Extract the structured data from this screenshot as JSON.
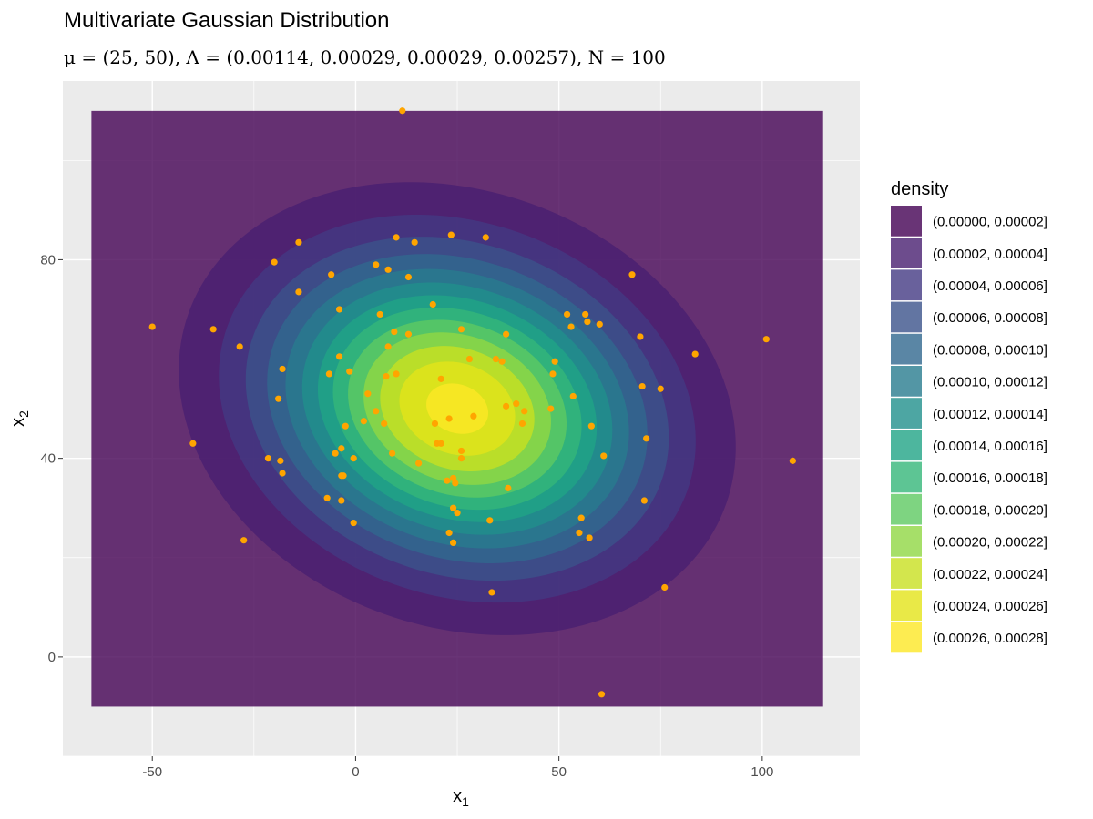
{
  "chart_data": {
    "type": "contour",
    "title": "Multivariate Gaussian Distribution",
    "subtitle": "μ = (25, 50), Λ = (0.00114, 0.00029, 0.00029, 0.00257), N = 100",
    "xlabel": "x",
    "xlabel_sub": "1",
    "ylabel": "x",
    "ylabel_sub": "2",
    "xlim": [
      -72,
      124
    ],
    "ylim": [
      -20,
      116
    ],
    "x_ticks": [
      -50,
      0,
      50,
      100
    ],
    "y_ticks": [
      0,
      40,
      80
    ],
    "grid": true,
    "mean": [
      25,
      50
    ],
    "precision": [
      0.00114,
      0.00029,
      0.00029,
      0.00257
    ],
    "n": 100,
    "fill_region": {
      "x": [
        -65,
        115
      ],
      "y": [
        -10,
        110
      ]
    },
    "legend": {
      "title": "density",
      "position": "right",
      "entries": [
        {
          "label": "(0.00000, 0.00002]",
          "color": "#440154"
        },
        {
          "label": "(0.00002, 0.00004]",
          "color": "#481F70"
        },
        {
          "label": "(0.00004, 0.00006]",
          "color": "#443983"
        },
        {
          "label": "(0.00006, 0.00008]",
          "color": "#3B528B"
        },
        {
          "label": "(0.00008, 0.00010]",
          "color": "#31688E"
        },
        {
          "label": "(0.00010, 0.00012]",
          "color": "#287C8E"
        },
        {
          "label": "(0.00012, 0.00014]",
          "color": "#21908C"
        },
        {
          "label": "(0.00014, 0.00016]",
          "color": "#20A486"
        },
        {
          "label": "(0.00016, 0.00018]",
          "color": "#35B779"
        },
        {
          "label": "(0.00018, 0.00020]",
          "color": "#5EC962"
        },
        {
          "label": "(0.00020, 0.00022]",
          "color": "#90D743"
        },
        {
          "label": "(0.00022, 0.00024]",
          "color": "#C8E020"
        },
        {
          "label": "(0.00024, 0.00026]",
          "color": "#E4E419"
        },
        {
          "label": "(0.00026, 0.00028]",
          "color": "#FDE725"
        }
      ]
    },
    "fill_opacity": 0.8,
    "point_color": "#FFA500",
    "points": [
      [
        11.5,
        110
      ],
      [
        -50,
        66.5
      ],
      [
        -35,
        66
      ],
      [
        -28.5,
        62.5
      ],
      [
        -40,
        43
      ],
      [
        -27.5,
        23.5
      ],
      [
        -20,
        79.5
      ],
      [
        -14,
        83.5
      ],
      [
        -14,
        73.5
      ],
      [
        -19,
        52
      ],
      [
        -18,
        58
      ],
      [
        -21.5,
        40
      ],
      [
        -18.5,
        39.5
      ],
      [
        -18,
        37
      ],
      [
        -6,
        77
      ],
      [
        -4,
        70
      ],
      [
        -4,
        60.5
      ],
      [
        -6.5,
        57
      ],
      [
        -1.5,
        57.5
      ],
      [
        -5,
        41
      ],
      [
        -3.5,
        42
      ],
      [
        -3.5,
        36.5
      ],
      [
        -3,
        36.5
      ],
      [
        -7,
        32
      ],
      [
        -3.5,
        31.5
      ],
      [
        -2.5,
        46.5
      ],
      [
        -0.5,
        40
      ],
      [
        -0.5,
        27
      ],
      [
        5,
        79
      ],
      [
        8,
        78
      ],
      [
        13,
        76.5
      ],
      [
        6,
        69
      ],
      [
        9.5,
        65.5
      ],
      [
        8,
        62.5
      ],
      [
        13,
        65
      ],
      [
        10,
        84.5
      ],
      [
        14.5,
        83.5
      ],
      [
        23.5,
        85
      ],
      [
        32,
        84.5
      ],
      [
        19,
        71
      ],
      [
        26,
        66
      ],
      [
        28,
        60
      ],
      [
        37,
        65
      ],
      [
        34.5,
        60
      ],
      [
        36,
        59.5
      ],
      [
        3,
        53
      ],
      [
        2,
        47.5
      ],
      [
        5,
        49.5
      ],
      [
        7,
        47
      ],
      [
        10,
        57
      ],
      [
        7.5,
        56.5
      ],
      [
        9,
        41
      ],
      [
        21,
        56
      ],
      [
        19.5,
        47
      ],
      [
        23,
        48
      ],
      [
        29,
        48.5
      ],
      [
        20,
        43
      ],
      [
        21,
        43
      ],
      [
        15.5,
        39
      ],
      [
        26,
        41.5
      ],
      [
        26,
        40
      ],
      [
        24,
        36
      ],
      [
        22.5,
        35.5
      ],
      [
        24.5,
        35
      ],
      [
        24,
        30
      ],
      [
        25,
        29
      ],
      [
        37,
        50.5
      ],
      [
        39.5,
        51
      ],
      [
        41.5,
        49.5
      ],
      [
        41,
        47
      ],
      [
        37.5,
        34
      ],
      [
        33,
        27.5
      ],
      [
        23,
        25
      ],
      [
        24,
        23
      ],
      [
        33.5,
        13
      ],
      [
        48,
        50
      ],
      [
        48.5,
        57
      ],
      [
        49,
        59.5
      ],
      [
        52,
        69
      ],
      [
        56.5,
        69
      ],
      [
        57,
        67.5
      ],
      [
        53,
        66.5
      ],
      [
        60,
        67
      ],
      [
        53.5,
        52.5
      ],
      [
        58,
        46.5
      ],
      [
        61,
        40.5
      ],
      [
        55.5,
        28
      ],
      [
        55,
        25
      ],
      [
        57.5,
        24
      ],
      [
        68,
        77
      ],
      [
        70,
        64.5
      ],
      [
        70.5,
        54.5
      ],
      [
        75,
        54
      ],
      [
        71.5,
        44
      ],
      [
        71,
        31.5
      ],
      [
        76,
        14
      ],
      [
        83.5,
        61
      ],
      [
        101,
        64
      ],
      [
        107.5,
        39.5
      ],
      [
        60.5,
        -7.5
      ]
    ]
  }
}
